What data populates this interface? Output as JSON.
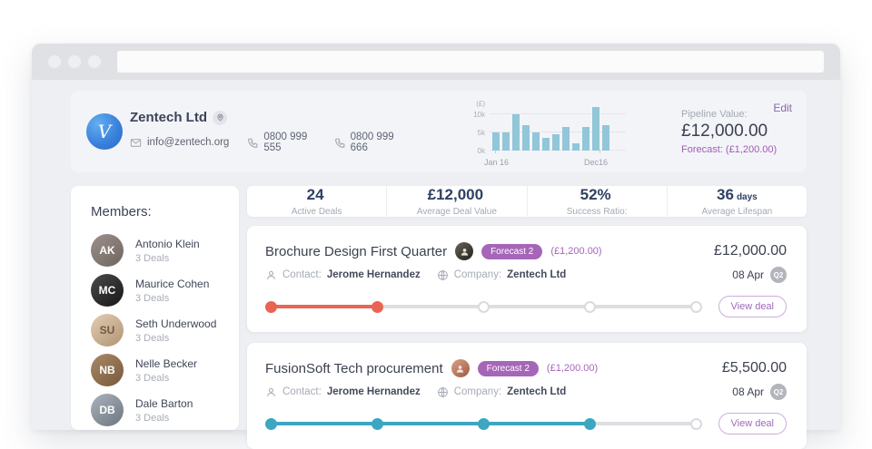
{
  "browser": {
    "url": ""
  },
  "header": {
    "logo_letter": "V",
    "company_name": "Zentech Ltd",
    "email": "info@zentech.org",
    "phone1": "0800 999 555",
    "phone2": "0800 999 666",
    "pipeline_label": "Pipeline Value:",
    "pipeline_value": "£12,000.00",
    "forecast": "Forecast: (£1,200.00)",
    "edit_label": "Edit"
  },
  "chart_data": {
    "type": "bar",
    "title": "",
    "ylabel": "(£)",
    "yticks": [
      "10k",
      "5k",
      "0k"
    ],
    "x_axis": {
      "start_label": "Jan 16",
      "end_label": "Dec16"
    },
    "values_k": [
      5,
      5,
      10,
      7,
      5,
      3.5,
      4.5,
      6.5,
      2,
      6.5,
      12,
      7
    ],
    "ylim": [
      0,
      12.5
    ],
    "grid": true,
    "bar_color": "#92c6d9"
  },
  "stats": [
    {
      "value": "24",
      "suffix": "",
      "label": "Active Deals"
    },
    {
      "value": "£12,000",
      "suffix": "",
      "label": "Average Deal Value"
    },
    {
      "value": "52%",
      "suffix": "",
      "label": "Success Ratio:"
    },
    {
      "value": "36",
      "suffix": "days",
      "label": "Average Lifespan"
    }
  ],
  "members": {
    "heading": "Members:",
    "items": [
      {
        "name": "Antonio Klein",
        "deals": "3 Deals",
        "initials": "AK"
      },
      {
        "name": "Maurice Cohen",
        "deals": "3 Deals",
        "initials": "MC"
      },
      {
        "name": "Seth Underwood",
        "deals": "3 Deals",
        "initials": "SU"
      },
      {
        "name": "Nelle Becker",
        "deals": "3 Deals",
        "initials": "NB"
      },
      {
        "name": "Dale Barton",
        "deals": "3 Deals",
        "initials": "DB"
      }
    ]
  },
  "deals": [
    {
      "title": "Brochure Design First Quarter",
      "badge": "Forecast 2",
      "forecast_amount": "(£1,200.00)",
      "contact_label": "Contact:",
      "contact": "Jerome Hernandez",
      "company_label": "Company:",
      "company": "Zentech Ltd",
      "value": "£12,000.00",
      "date": "08 Apr",
      "quarter": "Q2",
      "progress": 2,
      "progress_total": 5,
      "color": "#e96553",
      "view_label": "View deal"
    },
    {
      "title": "FusionSoft Tech procurement",
      "badge": "Forecast 2",
      "forecast_amount": "(£1,200.00)",
      "contact_label": "Contact:",
      "contact": "Jerome Hernandez",
      "company_label": "Company:",
      "company": "Zentech Ltd",
      "value": "£5,500.00",
      "date": "08 Apr",
      "quarter": "Q2",
      "progress": 4,
      "progress_total": 5,
      "color": "#3da7c2",
      "view_label": "View deal"
    }
  ]
}
